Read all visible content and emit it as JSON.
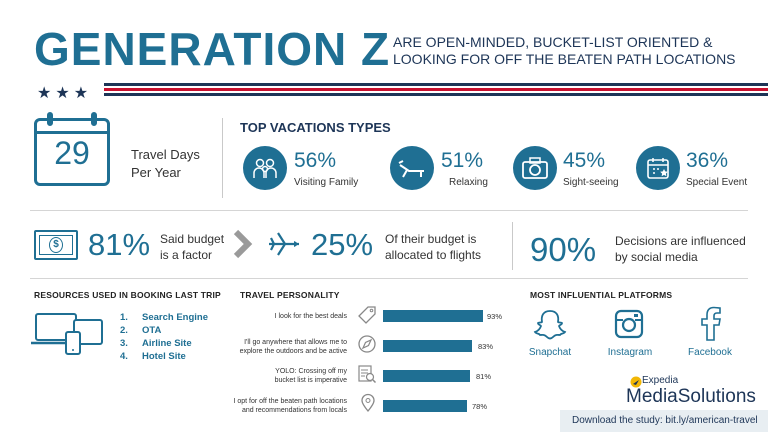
{
  "header": {
    "title": "GENERATION Z",
    "subtitle_line1": "ARE OPEN-MINDED, BUCKET-LIST ORIENTED &",
    "subtitle_line2": "LOOKING FOR OFF THE BEATEN PATH LOCATIONS",
    "stars": "★★★",
    "colors": {
      "blue": "#1f6f93",
      "navy": "#1d3557",
      "red": "#c8102e"
    }
  },
  "travel_days": {
    "value": "29",
    "label_line1": "Travel Days",
    "label_line2": "Per Year",
    "icon": "calendar-icon"
  },
  "vacations": {
    "heading": "TOP VACATIONS TYPES",
    "items": [
      {
        "pct": "56%",
        "label": "Visiting Family",
        "icon": "family-icon"
      },
      {
        "pct": "51%",
        "label": "Relaxing",
        "icon": "lounge-chair-icon"
      },
      {
        "pct": "45%",
        "label": "Sight-seeing",
        "icon": "camera-icon"
      },
      {
        "pct": "36%",
        "label": "Special Event",
        "icon": "calendar-star-icon"
      }
    ]
  },
  "budget": {
    "pct": "81%",
    "label_line1": "Said budget",
    "label_line2": "is a factor",
    "flights_pct": "25%",
    "flights_line1": "Of their budget is",
    "flights_line2": "allocated to flights"
  },
  "social": {
    "pct": "90%",
    "label_line1": "Decisions are influenced",
    "label_line2": "by social media"
  },
  "resources": {
    "heading": "RESOURCES USED IN BOOKING LAST TRIP",
    "items": [
      "Search Engine",
      "OTA",
      "Airline Site",
      "Hotel Site"
    ],
    "numbers": [
      "1.",
      "2.",
      "3.",
      "4."
    ]
  },
  "personality": {
    "heading": "TRAVEL PERSONALITY",
    "items": [
      {
        "line1": "I look for the best deals",
        "line2": "",
        "pct": "93%",
        "value": 93,
        "icon": "price-tag-icon"
      },
      {
        "line1": "I'll go anywhere that allows me to",
        "line2": "explore the outdoors and be active",
        "pct": "83%",
        "value": 83,
        "icon": "compass-icon"
      },
      {
        "line1": "YOLO: Crossing off my",
        "line2": "bucket list is imperative",
        "pct": "81%",
        "value": 81,
        "icon": "checklist-icon"
      },
      {
        "line1": "I opt for off the beaten path locations",
        "line2": "and recommendations from locals",
        "pct": "78%",
        "value": 78,
        "icon": "location-pin-icon"
      }
    ]
  },
  "platforms": {
    "heading": "MOST INFLUENTIAL PLATFORMS",
    "items": [
      {
        "label": "Snapchat",
        "icon": "snapchat-icon"
      },
      {
        "label": "Instagram",
        "icon": "instagram-icon"
      },
      {
        "label": "Facebook",
        "icon": "facebook-icon"
      }
    ]
  },
  "brand": {
    "line1": "Expedia",
    "line2": "MediaSolutions"
  },
  "footer": {
    "download": "Download the study: bit.ly/american-travel"
  }
}
